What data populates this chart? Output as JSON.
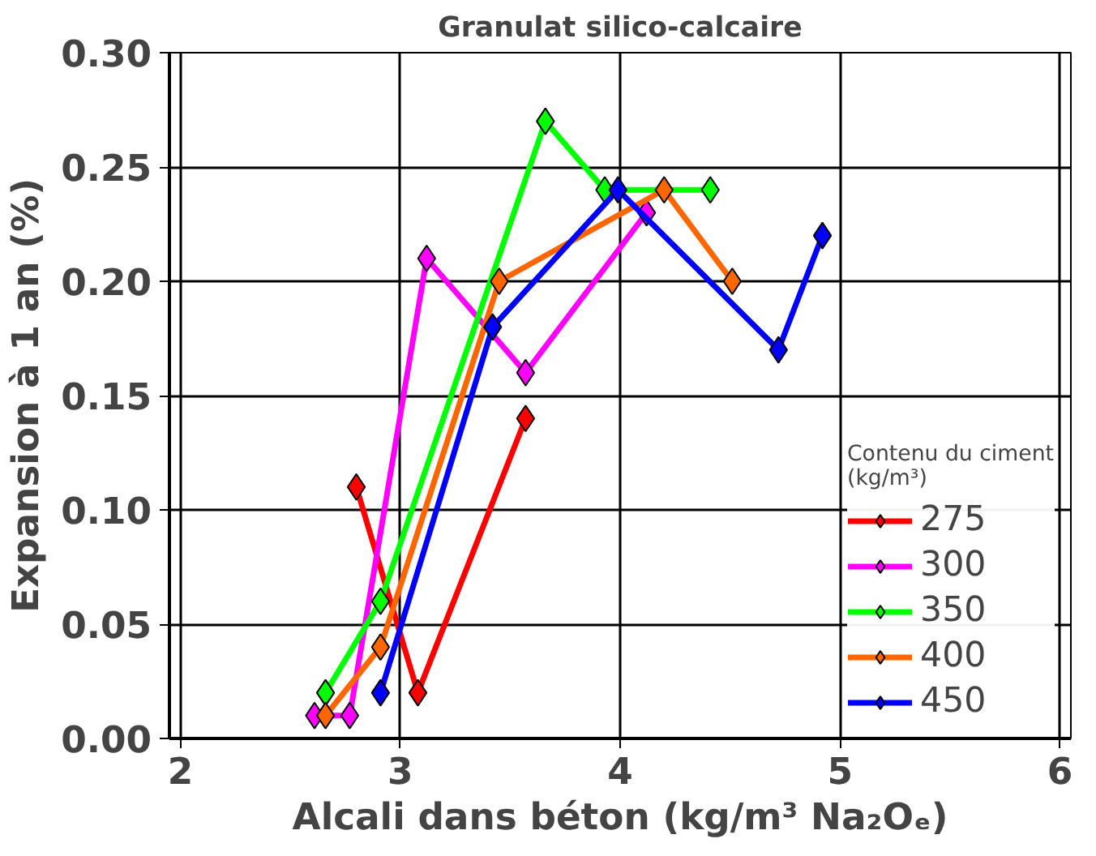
{
  "chart_data": {
    "type": "line",
    "title": "Granulat silico-calcaire",
    "xlabel": "Alcali dans béton (kg/m³ Na₂Oₑ)",
    "ylabel": "Expansion à 1 an (%)",
    "legend_title": "Contenu du ciment (kg/m³)",
    "xlim": [
      1.95,
      6.05
    ],
    "xticks": [
      2,
      3,
      4,
      5,
      6
    ],
    "ylim": [
      0,
      0.3
    ],
    "yticks": [
      {
        "value": 0,
        "label": "0.00"
      },
      {
        "value": 0.05,
        "label": "0.05"
      },
      {
        "value": 0.1,
        "label": "0.10"
      },
      {
        "value": 0.15,
        "label": "0.15"
      },
      {
        "value": 0.2,
        "label": "0.20"
      },
      {
        "value": 0.25,
        "label": "0.25"
      },
      {
        "value": 0.3,
        "label": "0.30"
      }
    ],
    "grid": true,
    "legend": "right",
    "marker": "diamond",
    "line_style": "solid",
    "series": [
      {
        "name": "275",
        "color": "#ff0000",
        "x": [
          2.8,
          3.08,
          3.57
        ],
        "values": [
          0.11,
          0.02,
          0.14
        ]
      },
      {
        "name": "300",
        "color": "#ff00ff",
        "x": [
          2.61,
          2.77,
          3.12,
          3.57,
          4.12
        ],
        "values": [
          0.01,
          0.01,
          0.21,
          0.16,
          0.23
        ]
      },
      {
        "name": "350",
        "color": "#00ff00",
        "x": [
          2.66,
          2.91,
          3.66,
          3.93,
          4.41
        ],
        "values": [
          0.02,
          0.06,
          0.27,
          0.24,
          0.24
        ]
      },
      {
        "name": "400",
        "color": "#ff6600",
        "x": [
          2.66,
          2.91,
          3.45,
          4.2,
          4.51
        ],
        "values": [
          0.01,
          0.04,
          0.2,
          0.24,
          0.2
        ]
      },
      {
        "name": "450",
        "color": "#0000ff",
        "x": [
          2.91,
          3.42,
          3.99,
          4.72,
          4.92
        ],
        "values": [
          0.02,
          0.18,
          0.24,
          0.17,
          0.22
        ]
      }
    ]
  }
}
